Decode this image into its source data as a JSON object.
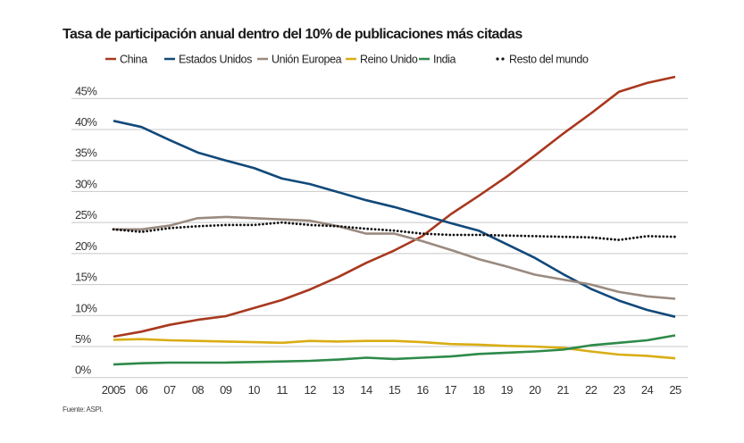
{
  "chart_data": {
    "type": "line",
    "title": "Tasa de participación anual dentro del 10% de publicaciones más citadas",
    "source": "Fuente: ASPI.",
    "xlabel": "",
    "ylabel": "",
    "x": [
      2005,
      2006,
      2007,
      2008,
      2009,
      2010,
      2011,
      2012,
      2013,
      2014,
      2015,
      2016,
      2017,
      2018,
      2019,
      2020,
      2021,
      2022,
      2023,
      2024,
      2025
    ],
    "x_tick_labels": [
      "2005",
      "06",
      "07",
      "08",
      "09",
      "10",
      "11",
      "12",
      "13",
      "14",
      "15",
      "16",
      "17",
      "18",
      "19",
      "20",
      "21",
      "22",
      "23",
      "24",
      "25"
    ],
    "ylim": [
      0,
      45
    ],
    "y_ticks": [
      0,
      5,
      10,
      15,
      20,
      25,
      30,
      35,
      40,
      45
    ],
    "y_tick_labels": [
      "0%",
      "5%",
      "10%",
      "15%",
      "20%",
      "25%",
      "30%",
      "35%",
      "40%",
      "45%"
    ],
    "grid": "horizontal",
    "legend_position": "top",
    "series": [
      {
        "name": "China",
        "color": "#a8381e",
        "style": "solid",
        "values": [
          6.6,
          7.4,
          8.5,
          9.3,
          9.9,
          11.2,
          12.5,
          14.2,
          16.2,
          18.5,
          20.5,
          22.8,
          26.3,
          29.3,
          32.4,
          35.8,
          39.3,
          42.6,
          46.1,
          47.5,
          48.5
        ]
      },
      {
        "name": "Estados Unidos",
        "color": "#11497a",
        "style": "solid",
        "values": [
          41.4,
          40.4,
          38.3,
          36.3,
          35.0,
          33.8,
          32.1,
          31.2,
          29.9,
          28.6,
          27.5,
          26.2,
          24.9,
          23.7,
          21.5,
          19.3,
          16.7,
          14.3,
          12.4,
          10.9,
          9.8
        ]
      },
      {
        "name": "Unión Europea",
        "color": "#9a8a80",
        "style": "solid",
        "values": [
          23.9,
          23.9,
          24.5,
          25.7,
          25.9,
          25.7,
          25.5,
          25.3,
          24.4,
          23.2,
          23.2,
          22.0,
          20.6,
          19.1,
          17.9,
          16.6,
          15.8,
          15.0,
          13.8,
          13.1,
          12.7
        ]
      },
      {
        "name": "Reino Unido",
        "color": "#d9ad14",
        "style": "solid",
        "values": [
          6.1,
          6.2,
          6.0,
          5.9,
          5.8,
          5.7,
          5.6,
          5.9,
          5.8,
          5.9,
          5.9,
          5.7,
          5.4,
          5.3,
          5.1,
          5.0,
          4.8,
          4.2,
          3.7,
          3.5,
          3.1
        ]
      },
      {
        "name": "India",
        "color": "#2e8a4a",
        "style": "solid",
        "values": [
          2.1,
          2.3,
          2.4,
          2.4,
          2.4,
          2.5,
          2.6,
          2.7,
          2.9,
          3.2,
          3.0,
          3.2,
          3.4,
          3.8,
          4.0,
          4.2,
          4.5,
          5.2,
          5.6,
          6.0,
          6.8
        ]
      },
      {
        "name": "Resto del mundo",
        "color": "#111111",
        "style": "dotted",
        "values": [
          23.9,
          23.5,
          24.1,
          24.4,
          24.6,
          24.6,
          25.0,
          24.6,
          24.4,
          24.0,
          23.7,
          23.2,
          23.0,
          23.0,
          22.9,
          22.8,
          22.7,
          22.6,
          22.2,
          22.8,
          22.7
        ]
      }
    ]
  }
}
